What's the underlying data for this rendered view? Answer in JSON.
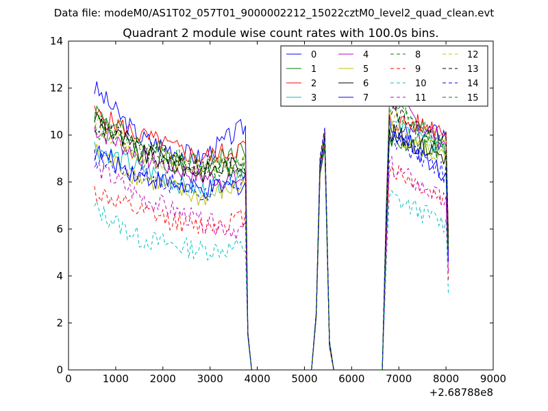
{
  "chart_data": {
    "type": "line",
    "suptitle": "Data file: modeM0/AS1T02_057T01_9000002212_15022cztM0_level2_quad_clean.evt",
    "title": "Quadrant 2 module wise count rates with 100.0s bins.",
    "xlabel": "",
    "ylabel": "",
    "x_offset_label": "+2.68788e8",
    "xlim": [
      0,
      9000
    ],
    "ylim": [
      0,
      14
    ],
    "xticks": [
      "0",
      "1000",
      "2000",
      "3000",
      "4000",
      "5000",
      "6000",
      "7000",
      "8000",
      "9000"
    ],
    "yticks": [
      "0",
      "2",
      "4",
      "6",
      "8",
      "10",
      "12",
      "14"
    ],
    "grid": false,
    "legend_position": "top-right",
    "legend_columns": 4,
    "series": [
      {
        "name": "0",
        "color": "#0000ff",
        "style": "solid",
        "level": [
          12.0,
          9.9,
          9.0,
          10.4,
          10.0,
          10.1
        ]
      },
      {
        "name": "1",
        "color": "#008000",
        "style": "solid",
        "level": [
          11.1,
          9.6,
          8.8,
          9.4,
          9.8,
          9.3
        ]
      },
      {
        "name": "2",
        "color": "#ff0000",
        "style": "solid",
        "level": [
          10.9,
          10.0,
          9.0,
          9.5,
          10.6,
          10.3
        ]
      },
      {
        "name": "3",
        "color": "#00bfbf",
        "style": "solid",
        "level": [
          9.5,
          8.6,
          7.6,
          8.5,
          10.5,
          9.4
        ]
      },
      {
        "name": "4",
        "color": "#bf00bf",
        "style": "solid",
        "level": [
          10.3,
          9.1,
          8.2,
          8.1,
          11.6,
          9.6
        ]
      },
      {
        "name": "5",
        "color": "#bfbf00",
        "style": "solid",
        "level": [
          9.3,
          8.2,
          7.3,
          7.9,
          10.2,
          8.9
        ]
      },
      {
        "name": "6",
        "color": "#000000",
        "style": "solid",
        "level": [
          10.8,
          9.2,
          8.4,
          8.8,
          10.1,
          9.1
        ]
      },
      {
        "name": "7",
        "color": "#0000ff",
        "style": "solid",
        "level": [
          9.3,
          8.3,
          7.6,
          7.9,
          10.4,
          8.3
        ]
      },
      {
        "name": "8",
        "color": "#008000",
        "style": "dashed",
        "level": [
          10.3,
          9.1,
          8.4,
          8.6,
          11.3,
          9.4
        ]
      },
      {
        "name": "9",
        "color": "#ff0000",
        "style": "dashed",
        "level": [
          7.6,
          6.7,
          6.1,
          6.5,
          8.6,
          7.2
        ]
      },
      {
        "name": "10",
        "color": "#00bfbf",
        "style": "dashed",
        "level": [
          6.9,
          5.6,
          5.1,
          5.2,
          7.4,
          6.2
        ]
      },
      {
        "name": "11",
        "color": "#bf00bf",
        "style": "dashed",
        "level": [
          8.7,
          7.4,
          6.3,
          5.9,
          8.7,
          7.1
        ]
      },
      {
        "name": "12",
        "color": "#bfbf00",
        "style": "dashed",
        "level": [
          10.6,
          9.2,
          8.6,
          8.7,
          10.8,
          9.6
        ]
      },
      {
        "name": "13",
        "color": "#000000",
        "style": "dashed",
        "level": [
          10.5,
          9.5,
          8.6,
          8.8,
          11.1,
          9.7
        ]
      },
      {
        "name": "14",
        "color": "#0000ff",
        "style": "dashed",
        "level": [
          9.0,
          8.4,
          7.5,
          8.1,
          10.0,
          8.3
        ]
      },
      {
        "name": "15",
        "color": "#008000",
        "style": "dashed",
        "level": [
          10.7,
          9.5,
          8.7,
          8.6,
          11.2,
          9.5
        ]
      }
    ]
  }
}
